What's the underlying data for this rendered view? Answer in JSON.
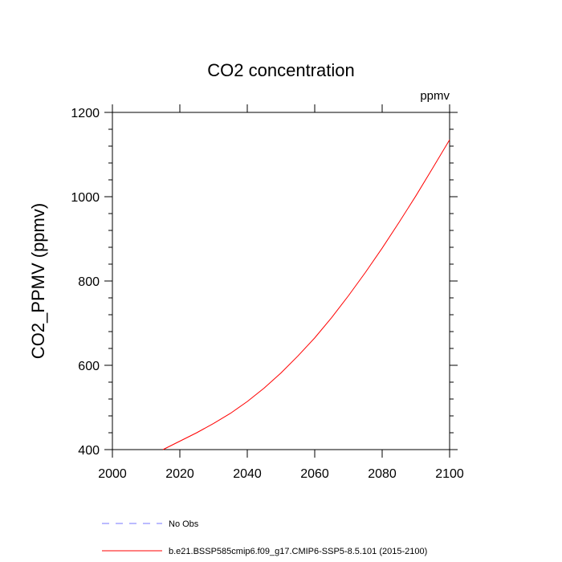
{
  "chart_data": {
    "type": "line",
    "title": "CO2 concentration",
    "units_label": "ppmv",
    "xlabel": "",
    "ylabel": "CO2_PPMV  (ppmv)",
    "xlim": [
      2000,
      2100
    ],
    "ylim": [
      400,
      1200
    ],
    "x_ticks": [
      "2000",
      "2020",
      "2040",
      "2060",
      "2080",
      "2100"
    ],
    "y_ticks": [
      "400",
      "600",
      "800",
      "1000",
      "1200"
    ],
    "grid": false,
    "legend_position": "bottom",
    "series": [
      {
        "name": "b.e21.BSSP585cmip6.f09_g17.CMIP6-SSP5-8.5.101 (2015-2100)",
        "color": "#ff0000",
        "style": "solid",
        "x": [
          2015,
          2020,
          2025,
          2030,
          2035,
          2040,
          2045,
          2050,
          2055,
          2060,
          2065,
          2070,
          2075,
          2080,
          2085,
          2090,
          2095,
          2100
        ],
        "y": [
          400,
          420,
          440,
          462,
          486,
          514,
          546,
          582,
          622,
          665,
          713,
          765,
          820,
          878,
          939,
          1002,
          1068,
          1135
        ]
      }
    ],
    "legend": [
      {
        "label": "No Obs",
        "color": "#7777ff",
        "style": "dashed"
      },
      {
        "label": "b.e21.BSSP585cmip6.f09_g17.CMIP6-SSP5-8.5.101 (2015-2100)",
        "color": "#ff0000",
        "style": "solid"
      }
    ]
  }
}
